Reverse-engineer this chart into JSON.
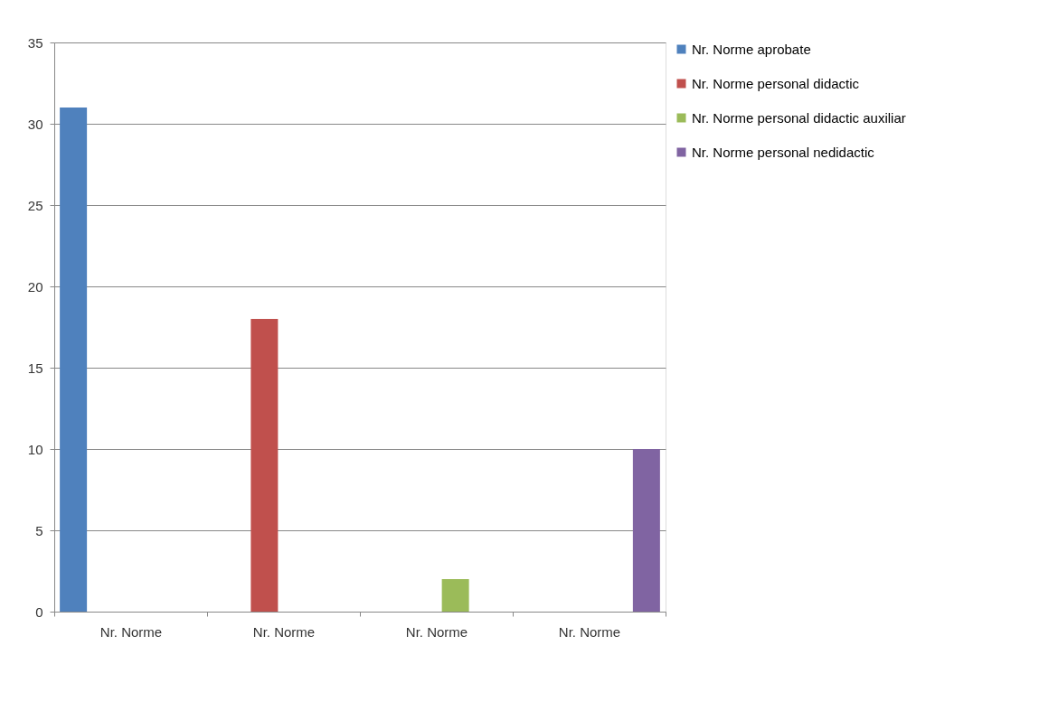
{
  "chart_data": {
    "type": "bar",
    "categories": [
      "Nr. Norme",
      "Nr. Norme",
      "Nr. Norme",
      "Nr. Norme"
    ],
    "series": [
      {
        "name": "Nr. Norme aprobate",
        "color": "#4f81bd",
        "values": [
          31,
          null,
          null,
          null
        ]
      },
      {
        "name": "Nr. Norme personal didactic",
        "color": "#c0504d",
        "values": [
          null,
          18,
          null,
          null
        ]
      },
      {
        "name": "Nr. Norme personal didactic auxiliar",
        "color": "#9bbb59",
        "values": [
          null,
          null,
          2,
          null
        ]
      },
      {
        "name": "Nr. Norme personal nedidactic",
        "color": "#8064a2",
        "values": [
          null,
          null,
          null,
          10
        ]
      }
    ],
    "ylim": [
      0,
      35
    ],
    "yticks": [
      0,
      5,
      10,
      15,
      20,
      25,
      30,
      35
    ],
    "grid": "y",
    "legend": "right"
  }
}
